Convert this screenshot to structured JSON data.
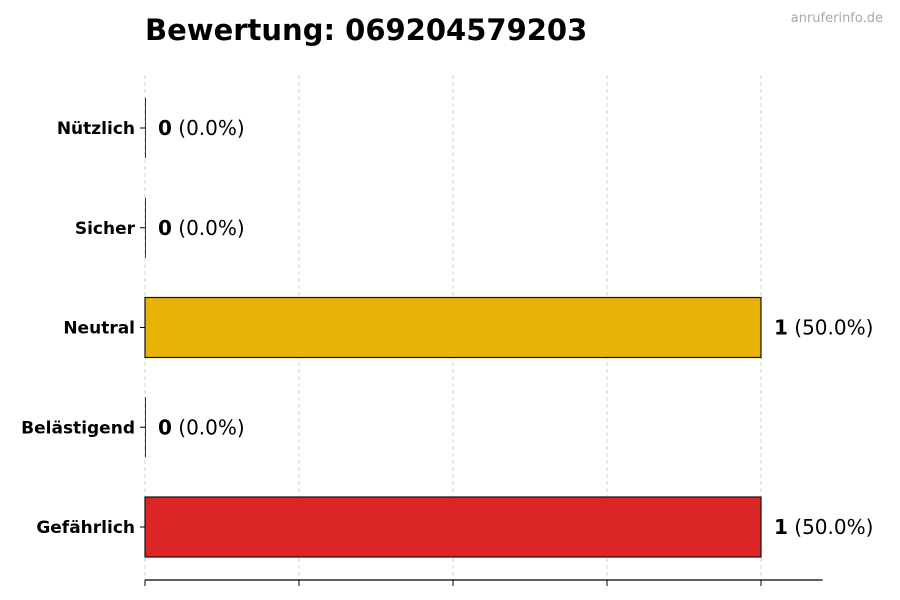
{
  "watermark": "anruferinfo.de",
  "chart_data": {
    "type": "bar",
    "orientation": "horizontal",
    "title": "Bewertung: 069204579203",
    "categories": [
      "Nützlich",
      "Sicher",
      "Neutral",
      "Belästigend",
      "Gefährlich"
    ],
    "values": [
      0,
      0,
      1,
      0,
      1
    ],
    "labels": [
      "(0.0%)",
      "(0.0%)",
      "(50.0%)",
      "(0.0%)",
      "(50.0%)"
    ],
    "colors": [
      "#2E9E4F",
      "#2B7BD6",
      "#E8B308",
      "#F07A1A",
      "#DC2626"
    ],
    "xlim": [
      0,
      1.1
    ],
    "xticks": [
      0,
      0.25,
      0.5,
      0.75,
      1
    ],
    "grid": "x, dashed",
    "xtick_labels_shown": false
  }
}
